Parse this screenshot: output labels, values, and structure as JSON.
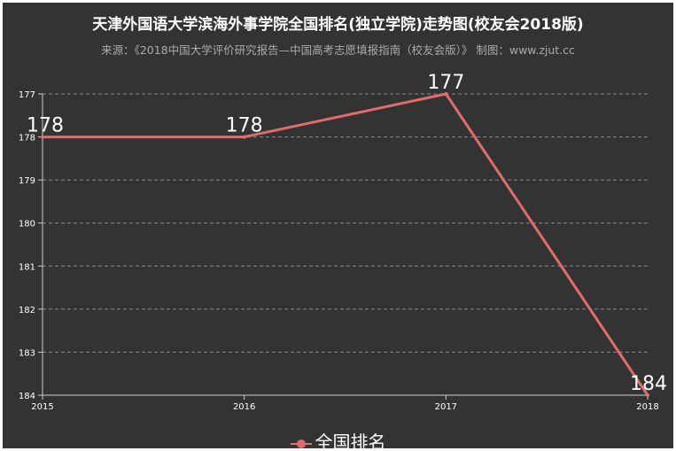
{
  "title": "天津外国语大学滨海外事学院全国排名(独立学院)走势图(校友会2018版)",
  "subtitle": "来源：《2018中国大学评价研究报告—中国高考志愿填报指南（校友会版）》 制图：www.zjut.cc",
  "chart_data": {
    "type": "line",
    "title": "天津外国语大学滨海外事学院全国排名(独立学院)走势图(校友会2018版)",
    "subtitle": "来源：《2018中国大学评价研究报告—中国高考志愿填报指南（校友会版）》 制图：www.zjut.cc",
    "x": [
      "2015",
      "2016",
      "2017",
      "2018"
    ],
    "series": [
      {
        "name": "全国排名",
        "values": [
          178,
          178,
          177,
          184
        ]
      }
    ],
    "y_ticks": [
      177,
      178,
      179,
      180,
      181,
      182,
      183,
      184
    ],
    "ylim": [
      177,
      184
    ],
    "y_inverted": true,
    "grid": "horizontal dashed",
    "legend_position": "bottom-center",
    "colors": {
      "background": "#333333",
      "line": "#e06c6c",
      "grid": "#888888",
      "text": "#ffffff"
    }
  }
}
